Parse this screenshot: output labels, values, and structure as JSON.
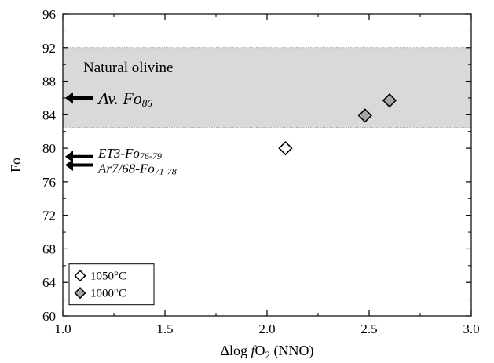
{
  "chart_data": {
    "type": "scatter",
    "xlabel_parts": [
      "Δlog ",
      "f",
      "O",
      "2",
      " (NNO)"
    ],
    "ylabel": "Fo",
    "xlim": [
      1.0,
      3.0
    ],
    "ylim": [
      60,
      96
    ],
    "xticks": [
      "1.0",
      "1.5",
      "2.0",
      "2.5",
      "3.0"
    ],
    "yticks": [
      "60",
      "64",
      "68",
      "72",
      "76",
      "80",
      "84",
      "88",
      "92",
      "96"
    ],
    "band": {
      "label": "Natural olivine",
      "y_range": [
        82.5,
        92
      ],
      "color": "#d9d9d9"
    },
    "series": [
      {
        "name": "1050°C",
        "marker": "diamond",
        "fill": "#ffffff",
        "x": [
          2.09
        ],
        "y": [
          80.0
        ]
      },
      {
        "name": "1000°C",
        "marker": "diamond",
        "fill": "#a6a6a6",
        "x": [
          2.48,
          2.6
        ],
        "y": [
          83.9,
          85.7
        ]
      }
    ],
    "annotations": [
      {
        "id": "av",
        "main": "Av. Fo",
        "sub": "86",
        "arrow_y": 86
      },
      {
        "id": "et3",
        "main": "ET3-Fo",
        "sub": "76-79",
        "arrow_y": 79
      },
      {
        "id": "ar7",
        "main": "Ar7/68-Fo",
        "sub": "71-78",
        "arrow_y": 78
      }
    ],
    "legend_position": "bottom-left",
    "grid": false
  }
}
